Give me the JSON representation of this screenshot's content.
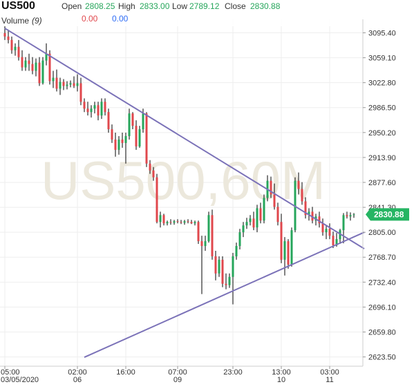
{
  "header": {
    "symbol": "US500",
    "open_label": "Open",
    "open_value": "2808.25",
    "high_label": "High",
    "high_value": "2833.00",
    "low_label": "Low",
    "low_value": "2789.12",
    "close_label": "Close",
    "close_value": "2830.88",
    "volume_label": "Volume",
    "volume_period": "(9)",
    "volume_value_a": "0.00",
    "volume_value_b": "0.00"
  },
  "watermark": "US500,60M",
  "last_price_tag": "2830.88",
  "colors": {
    "up": "#26a65b",
    "down": "#e0474c",
    "trendline": "#7b72b8",
    "grid": "#eeeeee",
    "tag": "#26b563"
  },
  "chart_data": {
    "type": "candlestick",
    "ylim": [
      2610,
      3115
    ],
    "y_ticks": [
      "3095.40",
      "3059.10",
      "3022.80",
      "2986.50",
      "2950.20",
      "2913.90",
      "2877.60",
      "2841.30",
      "2805.00",
      "2768.70",
      "2732.40",
      "2696.10",
      "2659.80",
      "2623.50"
    ],
    "x_ticks": [
      {
        "time": "05:00",
        "date": "03/05/2020",
        "bar": 0
      },
      {
        "time": "02:00",
        "date": "06",
        "bar": 21
      },
      {
        "time": "16:00",
        "date": "",
        "bar": 35
      },
      {
        "time": "07:00",
        "date": "09",
        "bar": 50
      },
      {
        "time": "23:00",
        "date": "",
        "bar": 66
      },
      {
        "time": "13:00",
        "date": "10",
        "bar": 80
      },
      {
        "time": "03:00",
        "date": "11",
        "bar": 94
      }
    ],
    "bar_count": 102,
    "trendlines": [
      {
        "from": {
          "bar": 0,
          "price": 3102
        },
        "to": {
          "bar": 104,
          "price": 2781
        }
      },
      {
        "from": {
          "bar": 23,
          "price": 2623
        },
        "to": {
          "bar": 104,
          "price": 2805
        }
      }
    ],
    "ohlc": [
      [
        3095,
        3105,
        3085,
        3090
      ],
      [
        3090,
        3100,
        3080,
        3085
      ],
      [
        3085,
        3090,
        3065,
        3070
      ],
      [
        3070,
        3080,
        3062,
        3075
      ],
      [
        3075,
        3085,
        3055,
        3060
      ],
      [
        3060,
        3070,
        3040,
        3045
      ],
      [
        3045,
        3060,
        3040,
        3055
      ],
      [
        3055,
        3065,
        3040,
        3050
      ],
      [
        3050,
        3060,
        3035,
        3040
      ],
      [
        3040,
        3058,
        3032,
        3052
      ],
      [
        3052,
        3060,
        3018,
        3022
      ],
      [
        3022,
        3060,
        3020,
        3055
      ],
      [
        3055,
        3080,
        3048,
        3065
      ],
      [
        3065,
        3070,
        3020,
        3025
      ],
      [
        3025,
        3040,
        3015,
        3030
      ],
      [
        3030,
        3042,
        3010,
        3014
      ],
      [
        3014,
        3030,
        3005,
        3024
      ],
      [
        3024,
        3028,
        3012,
        3018
      ],
      [
        3018,
        3025,
        3013,
        3020
      ],
      [
        3020,
        3026,
        3016,
        3022
      ],
      [
        3022,
        3032,
        3015,
        3018
      ],
      [
        3018,
        3035,
        3010,
        3022
      ],
      [
        3022,
        3030,
        2990,
        2995
      ],
      [
        2995,
        3000,
        2980,
        2985
      ],
      [
        2985,
        2995,
        2975,
        2980
      ],
      [
        2980,
        2990,
        2972,
        2985
      ],
      [
        2985,
        2995,
        2978,
        2990
      ],
      [
        2990,
        2995,
        2968,
        2975
      ],
      [
        2975,
        3000,
        2970,
        2995
      ],
      [
        2995,
        3000,
        2975,
        2980
      ],
      [
        2980,
        2985,
        2950,
        2955
      ],
      [
        2955,
        2962,
        2935,
        2940
      ],
      [
        2940,
        2950,
        2915,
        2925
      ],
      [
        2925,
        2945,
        2918,
        2940
      ],
      [
        2940,
        2950,
        2928,
        2935
      ],
      [
        2935,
        2950,
        2905,
        2945
      ],
      [
        2945,
        2985,
        2940,
        2978
      ],
      [
        2978,
        2980,
        2955,
        2960
      ],
      [
        2960,
        2968,
        2925,
        2930
      ],
      [
        2930,
        2960,
        2928,
        2955
      ],
      [
        2955,
        2985,
        2950,
        2978
      ],
      [
        2978,
        2980,
        2900,
        2905
      ],
      [
        2905,
        2910,
        2890,
        2895
      ],
      [
        2895,
        2900,
        2880,
        2885
      ],
      [
        2885,
        2890,
        2818,
        2820
      ],
      [
        2820,
        2835,
        2812,
        2830
      ],
      [
        2830,
        2832,
        2815,
        2818
      ],
      [
        2818,
        2822,
        2815,
        2820
      ],
      [
        2820,
        2824,
        2816,
        2819
      ],
      [
        2819,
        2823,
        2816,
        2821
      ],
      [
        2821,
        2824,
        2818,
        2820
      ],
      [
        2820,
        2823,
        2817,
        2819
      ],
      [
        2819,
        2823,
        2816,
        2821
      ],
      [
        2821,
        2824,
        2818,
        2820
      ],
      [
        2820,
        2823,
        2817,
        2818
      ],
      [
        2818,
        2822,
        2815,
        2820
      ],
      [
        2820,
        2822,
        2788,
        2792
      ],
      [
        2792,
        2800,
        2715,
        2785
      ],
      [
        2785,
        2800,
        2778,
        2792
      ],
      [
        2792,
        2835,
        2790,
        2830
      ],
      [
        2830,
        2838,
        2765,
        2770
      ],
      [
        2770,
        2778,
        2735,
        2745
      ],
      [
        2745,
        2770,
        2740,
        2765
      ],
      [
        2765,
        2770,
        2725,
        2730
      ],
      [
        2730,
        2745,
        2722,
        2728
      ],
      [
        2728,
        2745,
        2724,
        2740
      ],
      [
        2740,
        2775,
        2700,
        2770
      ],
      [
        2770,
        2790,
        2765,
        2785
      ],
      [
        2785,
        2810,
        2780,
        2805
      ],
      [
        2805,
        2820,
        2798,
        2815
      ],
      [
        2815,
        2826,
        2810,
        2820
      ],
      [
        2820,
        2830,
        2815,
        2825
      ],
      [
        2825,
        2835,
        2808,
        2812
      ],
      [
        2812,
        2845,
        2805,
        2840
      ],
      [
        2840,
        2848,
        2818,
        2822
      ],
      [
        2822,
        2860,
        2818,
        2855
      ],
      [
        2855,
        2888,
        2850,
        2880
      ],
      [
        2880,
        2886,
        2855,
        2860
      ],
      [
        2860,
        2876,
        2838,
        2842
      ],
      [
        2842,
        2848,
        2815,
        2820
      ],
      [
        2820,
        2832,
        2760,
        2765
      ],
      [
        2765,
        2798,
        2742,
        2792
      ],
      [
        2792,
        2795,
        2752,
        2758
      ],
      [
        2758,
        2812,
        2755,
        2808
      ],
      [
        2808,
        2885,
        2805,
        2880
      ],
      [
        2880,
        2892,
        2860,
        2868
      ],
      [
        2868,
        2878,
        2845,
        2850
      ],
      [
        2850,
        2856,
        2825,
        2830
      ],
      [
        2830,
        2840,
        2822,
        2835
      ],
      [
        2835,
        2842,
        2818,
        2822
      ],
      [
        2822,
        2832,
        2815,
        2828
      ],
      [
        2828,
        2835,
        2812,
        2818
      ],
      [
        2818,
        2825,
        2800,
        2805
      ],
      [
        2805,
        2815,
        2795,
        2810
      ],
      [
        2810,
        2818,
        2795,
        2800
      ],
      [
        2800,
        2806,
        2782,
        2786
      ],
      [
        2786,
        2804,
        2784,
        2795
      ],
      [
        2795,
        2810,
        2788,
        2808
      ],
      [
        2808,
        2833,
        2789,
        2830
      ],
      [
        2830,
        2835,
        2825,
        2828
      ],
      [
        2828,
        2834,
        2822,
        2830
      ],
      [
        2830,
        2833,
        2826,
        2831
      ]
    ]
  }
}
